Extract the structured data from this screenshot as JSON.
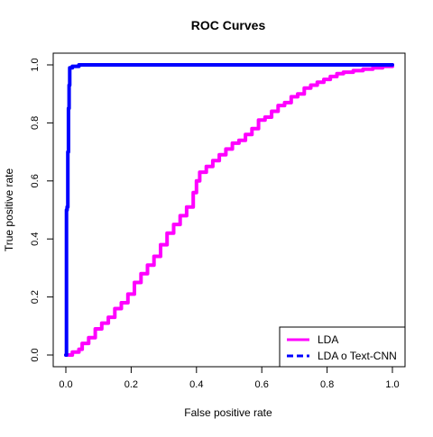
{
  "chart_data": {
    "type": "line",
    "title": "ROC Curves",
    "xlabel": "False positive rate",
    "ylabel": "True positive rate",
    "xlim": [
      0,
      1
    ],
    "ylim": [
      0,
      1
    ],
    "x_ticks": [
      "0.0",
      "0.2",
      "0.4",
      "0.6",
      "0.8",
      "1.0"
    ],
    "y_ticks": [
      "0.0",
      "0.2",
      "0.4",
      "0.6",
      "0.8",
      "1.0"
    ],
    "grid": false,
    "legend_position": "bottom-right",
    "series": [
      {
        "name": "LDA",
        "color": "#ff00ff",
        "line_style": "solid",
        "points": [
          [
            0.0,
            0.0
          ],
          [
            0.01,
            0.0
          ],
          [
            0.02,
            0.01
          ],
          [
            0.04,
            0.02
          ],
          [
            0.05,
            0.04
          ],
          [
            0.07,
            0.06
          ],
          [
            0.09,
            0.09
          ],
          [
            0.11,
            0.11
          ],
          [
            0.13,
            0.13
          ],
          [
            0.15,
            0.16
          ],
          [
            0.17,
            0.18
          ],
          [
            0.19,
            0.21
          ],
          [
            0.21,
            0.25
          ],
          [
            0.23,
            0.28
          ],
          [
            0.25,
            0.31
          ],
          [
            0.27,
            0.34
          ],
          [
            0.29,
            0.38
          ],
          [
            0.31,
            0.42
          ],
          [
            0.33,
            0.45
          ],
          [
            0.35,
            0.48
          ],
          [
            0.37,
            0.51
          ],
          [
            0.39,
            0.56
          ],
          [
            0.4,
            0.6
          ],
          [
            0.41,
            0.63
          ],
          [
            0.43,
            0.65
          ],
          [
            0.45,
            0.67
          ],
          [
            0.47,
            0.69
          ],
          [
            0.49,
            0.71
          ],
          [
            0.51,
            0.73
          ],
          [
            0.53,
            0.74
          ],
          [
            0.55,
            0.76
          ],
          [
            0.57,
            0.78
          ],
          [
            0.59,
            0.81
          ],
          [
            0.61,
            0.82
          ],
          [
            0.63,
            0.84
          ],
          [
            0.65,
            0.86
          ],
          [
            0.67,
            0.87
          ],
          [
            0.69,
            0.89
          ],
          [
            0.71,
            0.9
          ],
          [
            0.73,
            0.92
          ],
          [
            0.75,
            0.93
          ],
          [
            0.77,
            0.94
          ],
          [
            0.79,
            0.95
          ],
          [
            0.81,
            0.96
          ],
          [
            0.83,
            0.97
          ],
          [
            0.85,
            0.975
          ],
          [
            0.88,
            0.98
          ],
          [
            0.91,
            0.985
          ],
          [
            0.94,
            0.99
          ],
          [
            0.97,
            0.995
          ],
          [
            1.0,
            1.0
          ]
        ]
      },
      {
        "name": "LDA o Text-CNN",
        "color": "#0000ff",
        "line_style": "dashed",
        "points": [
          [
            0.0,
            0.0
          ],
          [
            0.002,
            0.5
          ],
          [
            0.004,
            0.51
          ],
          [
            0.006,
            0.7
          ],
          [
            0.008,
            0.85
          ],
          [
            0.01,
            0.93
          ],
          [
            0.012,
            0.99
          ],
          [
            0.02,
            0.995
          ],
          [
            0.04,
            1.0
          ],
          [
            1.0,
            1.0
          ]
        ]
      }
    ]
  }
}
